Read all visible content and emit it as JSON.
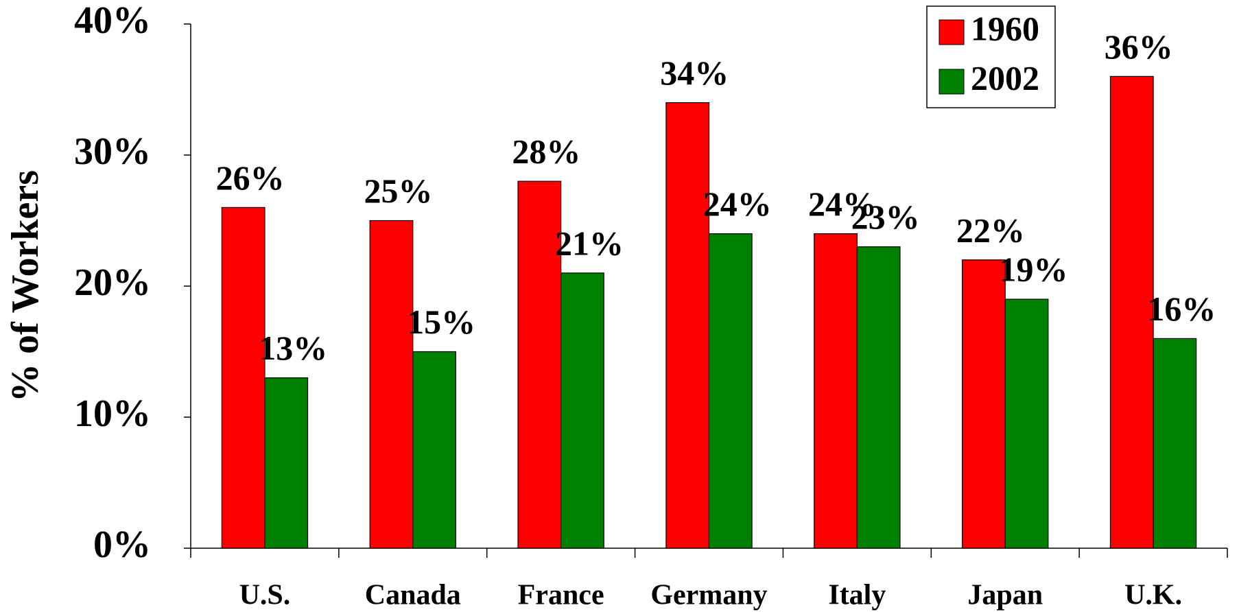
{
  "chart_data": {
    "type": "bar",
    "y_label": "% of Workers",
    "categories": [
      "U.S.",
      "Canada",
      "France",
      "Germany",
      "Italy",
      "Japan",
      "U.K."
    ],
    "series": [
      {
        "name": "1960",
        "color": "#ff0000",
        "values": [
          26,
          25,
          28,
          34,
          24,
          22,
          36
        ],
        "value_labels": [
          "26%",
          "25%",
          "28%",
          "34%",
          "24%",
          "22%",
          "36%"
        ]
      },
      {
        "name": "2002",
        "color": "#008000",
        "values": [
          13,
          15,
          21,
          24,
          23,
          19,
          16
        ],
        "value_labels": [
          "13%",
          "15%",
          "21%",
          "24%",
          "23%",
          "19%",
          "16%"
        ]
      }
    ],
    "ylim": [
      0,
      40
    ],
    "yticks": [
      {
        "value": 0,
        "label": "0%"
      },
      {
        "value": 10,
        "label": "10%"
      },
      {
        "value": 20,
        "label": "20%"
      },
      {
        "value": 30,
        "label": "30%"
      },
      {
        "value": 40,
        "label": "40%"
      }
    ],
    "legend": "top-right"
  }
}
